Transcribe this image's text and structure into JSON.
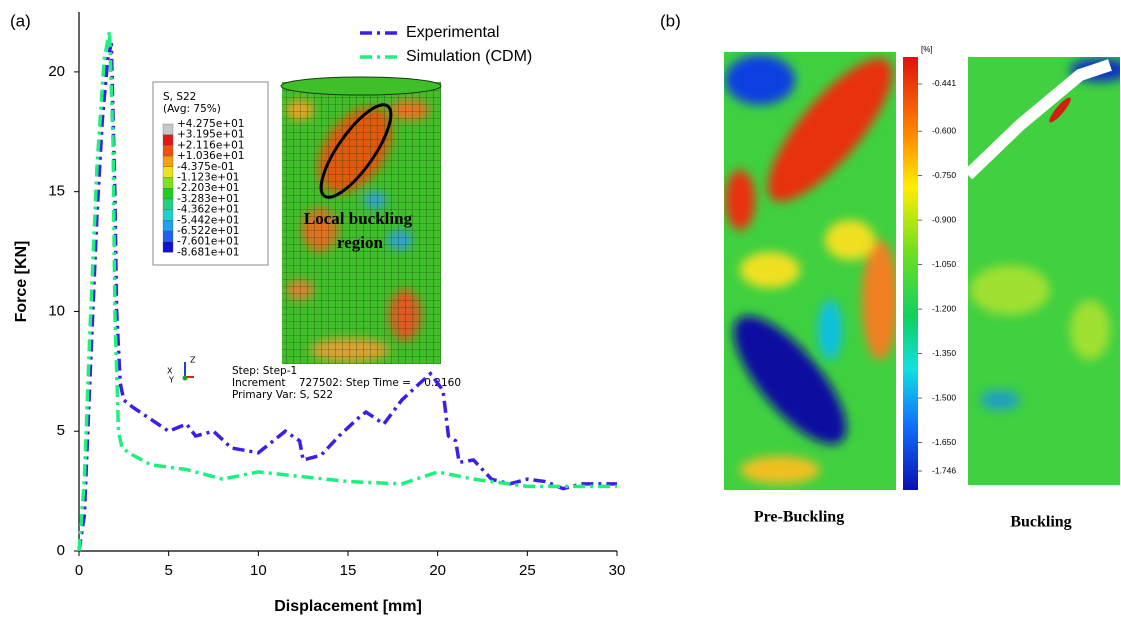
{
  "panel_labels": [
    "(a)",
    "(b)"
  ],
  "chart_data": {
    "type": "line",
    "xlabel": "Displacement [mm]",
    "ylabel": "Force [KN]",
    "xlim": [
      0,
      30
    ],
    "ylim": [
      0,
      22.5
    ],
    "xticks": [
      0,
      5,
      10,
      15,
      20,
      25,
      30
    ],
    "yticks": [
      0,
      5,
      10,
      15,
      20
    ],
    "grid": false,
    "legend": "top",
    "series": [
      {
        "name": "Experimental",
        "color": "#3b1fe6",
        "x": [
          0,
          0.3,
          0.6,
          1.0,
          1.3,
          1.6,
          1.8,
          2.0,
          2.1,
          2.3,
          2.5,
          3,
          4,
          5,
          6,
          6.5,
          7.5,
          8.5,
          10,
          11.5,
          12.3,
          12.5,
          13.5,
          14.5,
          15.5,
          16,
          17,
          18,
          19,
          19.6,
          20.3,
          20.6,
          21,
          21.2,
          22,
          23,
          24,
          25,
          26,
          27,
          28,
          30
        ],
        "values": [
          0,
          1.5,
          7,
          14,
          18,
          20.5,
          21.2,
          15,
          10,
          7,
          6.3,
          6,
          5.5,
          5.0,
          5.3,
          4.8,
          5.0,
          4.3,
          4.1,
          5.0,
          4.6,
          3.8,
          4.0,
          4.8,
          5.5,
          5.8,
          5.3,
          6.3,
          7.0,
          7.4,
          6.7,
          4.8,
          4.6,
          3.7,
          3.8,
          3.0,
          2.8,
          3.0,
          2.9,
          2.6,
          2.8,
          2.8
        ]
      },
      {
        "name": "Simulation (CDM)",
        "color": "#1cf07e",
        "x": [
          0,
          0.3,
          0.6,
          1.0,
          1.4,
          1.7,
          1.9,
          2.0,
          2.2,
          2.4,
          3,
          4,
          5,
          6,
          8,
          10,
          15,
          18,
          20,
          22,
          25,
          30
        ],
        "values": [
          0,
          3,
          9,
          16,
          20.5,
          21.7,
          17,
          10,
          5,
          4.3,
          4.0,
          3.6,
          3.5,
          3.4,
          3.0,
          3.3,
          2.9,
          2.8,
          3.3,
          3.0,
          2.7,
          2.7
        ]
      }
    ]
  },
  "fea_legend": {
    "title": "S, S22",
    "subtitle": "(Avg: 75%)",
    "values": [
      {
        "value": 42.75,
        "label": "+4.275e+01"
      },
      {
        "value": 31.95,
        "label": "+3.195e+01"
      },
      {
        "value": 21.16,
        "label": "+2.116e+01"
      },
      {
        "value": 10.36,
        "label": "+1.036e+01"
      },
      {
        "value": -0.4375,
        "label": "-4.375e-01"
      },
      {
        "value": -11.23,
        "label": "-1.123e+01"
      },
      {
        "value": -22.03,
        "label": "-2.203e+01"
      },
      {
        "value": -32.83,
        "label": "-3.283e+01"
      },
      {
        "value": -43.62,
        "label": "-4.362e+01"
      },
      {
        "value": -54.42,
        "label": "-5.442e+01"
      },
      {
        "value": -65.22,
        "label": "-6.522e+01"
      },
      {
        "value": -76.01,
        "label": "-7.601e+01"
      },
      {
        "value": -86.81,
        "label": "-8.681e+01"
      }
    ]
  },
  "annotation": [
    "Local buckling",
    "region"
  ],
  "step_info": [
    "Step: Step-1",
    "Increment    727502: Step Time =    0.2160",
    "Primary Var: S, S22"
  ],
  "triad": [
    "Z",
    "X",
    "Y"
  ],
  "colorbar": {
    "unit": "[%]",
    "clim": [
      -1.81,
      -0.35
    ],
    "ticks": [
      -0.441,
      {
        "value": -0.6,
        "label": "-0.600"
      },
      {
        "value": -0.75,
        "label": "-0.750"
      },
      {
        "value": -0.9,
        "label": "-0.900"
      },
      {
        "value": -1.05,
        "label": "-1.050"
      },
      {
        "value": -1.2,
        "label": "-1.200"
      },
      {
        "value": -1.35,
        "label": "-1.350"
      },
      {
        "value": -1.5,
        "label": "-1.500"
      },
      {
        "value": -1.65,
        "label": "-1.650"
      },
      -1.746
    ]
  },
  "maps": [
    "Pre-Buckling",
    "Buckling"
  ]
}
